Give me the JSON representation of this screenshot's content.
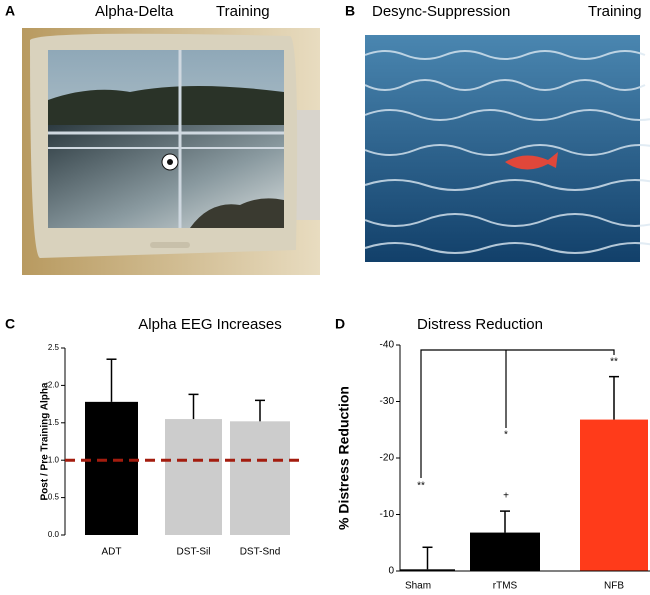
{
  "panels": {
    "a": {
      "label": "A",
      "title_left": "Alpha-Delta",
      "title_right": "Training"
    },
    "b": {
      "label": "B",
      "title_left": "Desync-Suppression",
      "title_right": "Training"
    },
    "c": {
      "label": "C"
    },
    "d": {
      "label": "D"
    }
  },
  "chart_data": [
    {
      "type": "bar",
      "title": "Alpha EEG Increases",
      "y_label": "Post / Pre Training Alpha",
      "categories": [
        "ADT",
        "DST-Sil",
        "DST-Snd"
      ],
      "values": [
        1.78,
        1.55,
        1.52
      ],
      "errors": [
        0.57,
        0.33,
        0.28
      ],
      "colors": [
        "#000000",
        "#cccccc",
        "#cccccc"
      ],
      "ylim": [
        0,
        2.5
      ],
      "yticks": [
        {
          "value": 0,
          "label": "0.0"
        },
        0.5,
        {
          "value": 1,
          "label": "1.0"
        },
        1.5,
        {
          "value": 2,
          "label": "2.0"
        },
        2.5
      ],
      "hline": {
        "value": 1,
        "color": "#a31c0e"
      }
    },
    {
      "type": "bar",
      "title": "Distress Reduction",
      "y_label": "% Distress Reduction",
      "categories": [
        "Sham",
        "rTMS",
        "NFB"
      ],
      "values": [
        -0.3,
        -6.8,
        -26.8
      ],
      "errors": [
        3.9,
        3.8,
        7.6
      ],
      "colors": [
        "#000000",
        "#000000",
        "#ff3b1a"
      ],
      "ylim": [
        0,
        -40
      ],
      "yticks": [
        -40,
        -30,
        -20,
        -10,
        0
      ],
      "annotations": [
        "**",
        "*",
        "+",
        "**"
      ]
    }
  ]
}
